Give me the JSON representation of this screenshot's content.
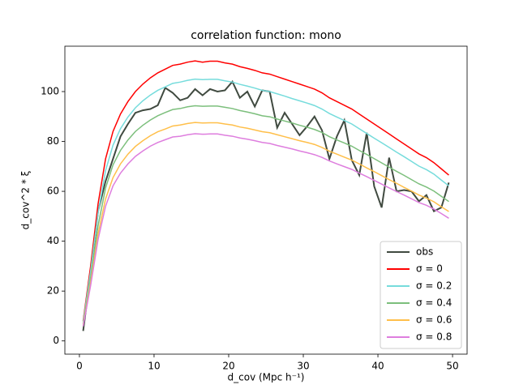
{
  "chart_data": {
    "type": "line",
    "title": "correlation function: mono",
    "x_label": "d_cov (Mpc h⁻¹)",
    "y_label": "d_cov^2 * ξ",
    "xlim": [
      -1.95,
      51.95
    ],
    "ylim": [
      -5.3,
      118.2
    ],
    "xticks": [
      0,
      10,
      20,
      30,
      40,
      50
    ],
    "yticks": [
      0,
      20,
      40,
      60,
      80,
      100
    ],
    "legend": "lower right",
    "x": [
      0.5,
      1.5,
      2.5,
      3.5,
      4.5,
      5.5,
      6.5,
      7.5,
      8.5,
      9.5,
      10.5,
      11.5,
      12.5,
      13.5,
      14.5,
      15.5,
      16.5,
      17.5,
      18.5,
      19.5,
      20.5,
      21.5,
      22.5,
      23.5,
      24.5,
      25.5,
      26.5,
      27.5,
      28.5,
      29.5,
      30.5,
      31.5,
      32.5,
      33.5,
      34.5,
      35.5,
      36.5,
      37.5,
      38.5,
      39.5,
      40.5,
      41.5,
      42.5,
      43.5,
      44.5,
      45.5,
      46.5,
      47.5,
      48.5,
      49.5
    ],
    "series": [
      {
        "name": "obs",
        "color": "#404a40",
        "values": [
          4,
          27,
          52,
          64,
          73,
          82,
          87,
          91.5,
          92.5,
          93,
          94.5,
          101.5,
          99.5,
          96.5,
          97.5,
          101,
          98.5,
          101,
          100,
          100.5,
          104,
          97.5,
          100,
          94,
          100.5,
          100,
          85.5,
          91.5,
          87,
          82.5,
          86,
          90,
          84.5,
          73,
          82,
          88.5,
          72.5,
          66.5,
          83.5,
          62,
          53.5,
          73.5,
          60,
          60.5,
          60,
          56,
          58.5,
          52,
          53.5,
          63.5
        ]
      },
      {
        "name": "σ = 0",
        "color": "#ff0000",
        "values": [
          8,
          30,
          55,
          73,
          84,
          91,
          96,
          100,
          103,
          105.5,
          107.5,
          109,
          110.5,
          111,
          111.8,
          112.3,
          111.8,
          112.2,
          112.2,
          111.5,
          111,
          110,
          109.3,
          108.5,
          107.5,
          107,
          106,
          105,
          104,
          103,
          102,
          101,
          99.5,
          97.5,
          96,
          94.5,
          93,
          91,
          89,
          87,
          85,
          83,
          81,
          79,
          77,
          75,
          73.5,
          71.5,
          69,
          66.5
        ]
      },
      {
        "name": "σ = 0.2",
        "color": "#76dcdc",
        "values": [
          7.5,
          28,
          51.4,
          68.3,
          78.5,
          85.1,
          89.8,
          93.5,
          96.3,
          98.6,
          100.5,
          101.9,
          103.3,
          103.8,
          104.5,
          105,
          104.8,
          104.9,
          104.9,
          104.3,
          103.8,
          102.9,
          102.2,
          101.4,
          100.5,
          100,
          99.1,
          98.2,
          97.2,
          96.3,
          95.4,
          94.4,
          93,
          91.2,
          89.8,
          88.4,
          87,
          85.1,
          83.2,
          81.3,
          79.5,
          77.6,
          75.7,
          73.9,
          72,
          70.1,
          68.7,
          66.9,
          64.5,
          62.2
        ]
      },
      {
        "name": "σ = 0.4",
        "color": "#7cbf7c",
        "values": [
          6.7,
          25.2,
          46.2,
          61.3,
          70.6,
          76.4,
          80.6,
          84,
          86.5,
          88.6,
          90.3,
          91.6,
          92.8,
          93.2,
          93.9,
          94.3,
          94.1,
          94.2,
          94.2,
          93.7,
          93.2,
          92.4,
          91.8,
          91.1,
          90.3,
          89.9,
          89,
          88.2,
          87.4,
          86.5,
          85.7,
          84.8,
          83.6,
          81.9,
          80.6,
          79.4,
          78.1,
          76.4,
          74.8,
          73.1,
          71.4,
          69.7,
          68,
          66.4,
          64.7,
          63,
          61.7,
          60.1,
          58,
          55.9
        ]
      },
      {
        "name": "σ = 0.6",
        "color": "#ffbf4a",
        "values": [
          6.2,
          23.4,
          42.9,
          56.9,
          65.5,
          71,
          74.9,
          78,
          80.3,
          82.3,
          83.9,
          85,
          86.2,
          86.6,
          87.2,
          87.6,
          87.4,
          87.5,
          87.5,
          87,
          86.6,
          85.8,
          85.3,
          84.6,
          83.9,
          83.5,
          82.7,
          81.9,
          81.1,
          80.3,
          79.6,
          78.8,
          77.6,
          76.1,
          74.9,
          73.7,
          72.5,
          71,
          69.4,
          67.9,
          66.3,
          64.7,
          63.2,
          61.6,
          60.1,
          58.5,
          57.3,
          55.8,
          53.8,
          51.9
        ]
      },
      {
        "name": "σ = 0.8",
        "color": "#de7ede",
        "values": [
          5.9,
          22.2,
          40.7,
          54,
          62.2,
          67.3,
          71,
          74,
          76.2,
          78.1,
          79.6,
          80.7,
          81.8,
          82.1,
          82.7,
          83.1,
          82.9,
          83,
          83,
          82.5,
          82.1,
          81.4,
          80.9,
          80.3,
          79.6,
          79.2,
          78.4,
          77.7,
          77,
          76.2,
          75.5,
          74.7,
          73.6,
          72.2,
          71,
          69.9,
          68.8,
          67.3,
          65.9,
          64.4,
          62.9,
          61.4,
          59.9,
          58.5,
          57,
          55.5,
          54.4,
          52.9,
          51.1,
          49.2
        ]
      }
    ]
  }
}
